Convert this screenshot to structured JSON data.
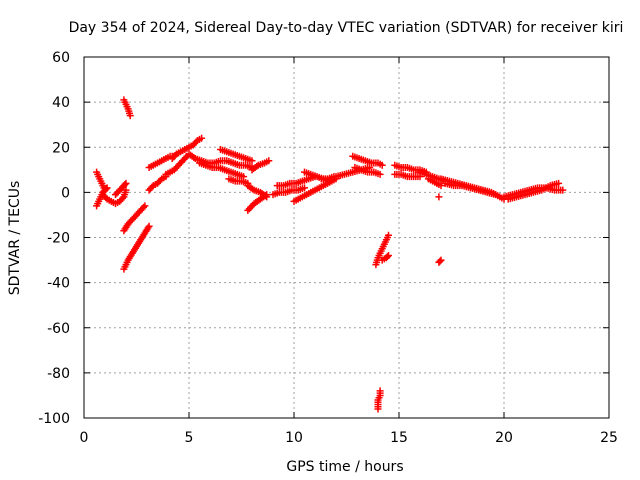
{
  "chart_data": {
    "type": "scatter",
    "title": "Day 354 of 2024, Sidereal Day-to-day VTEC variation (SDTVAR) for receiver kiri",
    "xlabel": "GPS time / hours",
    "ylabel": "SDTVAR / TECUs",
    "xlim": [
      0,
      25
    ],
    "ylim": [
      -100,
      60
    ],
    "xticks": [
      0,
      5,
      10,
      15,
      20,
      25
    ],
    "yticks": [
      -100,
      -80,
      -60,
      -40,
      -20,
      0,
      20,
      40,
      60
    ],
    "grid": true,
    "marker": "plus",
    "color": "#ff0000",
    "series": [
      {
        "name": "SDTVAR",
        "segments": [
          {
            "x": [
              0.6,
              0.7,
              0.8,
              0.9,
              1.0,
              1.1
            ],
            "y": [
              -6,
              -4,
              -2,
              0,
              1,
              2
            ]
          },
          {
            "x": [
              0.6,
              0.7,
              0.8,
              0.9,
              1.0
            ],
            "y": [
              9,
              7,
              5,
              3,
              1
            ]
          },
          {
            "x": [
              0.9,
              1.1,
              1.3,
              1.5,
              1.7,
              1.9,
              2.0
            ],
            "y": [
              -1,
              -3,
              -4,
              -5,
              -4,
              -2,
              1
            ]
          },
          {
            "x": [
              1.5,
              1.7,
              1.9,
              2.0
            ],
            "y": [
              -1,
              1,
              3,
              4
            ]
          },
          {
            "x": [
              1.9,
              2.0,
              2.1,
              2.2
            ],
            "y": [
              41,
              39,
              37,
              34
            ]
          },
          {
            "x": [
              1.9,
              2.1,
              2.3,
              2.5,
              2.7,
              2.9
            ],
            "y": [
              -17,
              -14,
              -12,
              -10,
              -8,
              -6
            ]
          },
          {
            "x": [
              1.9,
              2.1,
              2.3,
              2.5,
              2.7,
              2.9,
              3.1
            ],
            "y": [
              -34,
              -30,
              -27,
              -24,
              -21,
              -18,
              -15
            ]
          },
          {
            "x": [
              3.1,
              3.3,
              3.5,
              3.7,
              3.9
            ],
            "y": [
              1,
              3,
              4,
              6,
              7
            ]
          },
          {
            "x": [
              3.1,
              3.3,
              3.5,
              3.7,
              3.9,
              4.1,
              4.3
            ],
            "y": [
              11,
              12,
              13,
              14,
              15,
              16,
              16
            ]
          },
          {
            "x": [
              3.9,
              4.1,
              4.3,
              4.5,
              4.7,
              4.9
            ],
            "y": [
              8,
              9,
              10,
              12,
              14,
              16
            ]
          },
          {
            "x": [
              4.2,
              4.4,
              4.6,
              4.8,
              5.0,
              5.2,
              5.4,
              5.6
            ],
            "y": [
              15,
              17,
              18,
              19,
              20,
              21,
              23,
              24
            ]
          },
          {
            "x": [
              5.0,
              5.3,
              5.6,
              5.9,
              6.2,
              6.5,
              6.8,
              7.1,
              7.4,
              7.7,
              8.0
            ],
            "y": [
              17,
              15,
              14,
              13,
              13,
              14,
              14,
              13,
              12,
              12,
              11
            ]
          },
          {
            "x": [
              5.5,
              5.8,
              6.1,
              6.4,
              6.7,
              7.0,
              7.3,
              7.6
            ],
            "y": [
              13,
              12,
              11,
              11,
              10,
              9,
              8,
              7
            ]
          },
          {
            "x": [
              6.5,
              6.8,
              7.1,
              7.4,
              7.7,
              8.0
            ],
            "y": [
              19,
              18,
              17,
              16,
              15,
              14
            ]
          },
          {
            "x": [
              6.9,
              7.2,
              7.5,
              7.8
            ],
            "y": [
              6,
              5,
              5,
              4
            ]
          },
          {
            "x": [
              7.8,
              8.1,
              8.4,
              8.7
            ],
            "y": [
              -8,
              -5,
              -3,
              -1
            ]
          },
          {
            "x": [
              7.8,
              8.1,
              8.4,
              8.7
            ],
            "y": [
              3,
              1,
              0,
              -2
            ]
          },
          {
            "x": [
              8.0,
              8.3,
              8.6,
              8.8
            ],
            "y": [
              10,
              12,
              13,
              14
            ]
          },
          {
            "x": [
              9.0,
              9.3,
              9.6,
              9.9,
              10.2,
              10.5
            ],
            "y": [
              -1,
              0,
              0,
              1,
              1,
              2
            ]
          },
          {
            "x": [
              9.2,
              9.5,
              9.8,
              10.1,
              10.4,
              10.7,
              11.0
            ],
            "y": [
              3,
              3,
              4,
              4,
              5,
              6,
              7
            ]
          },
          {
            "x": [
              10.0,
              10.4,
              10.8,
              11.2,
              11.6,
              12.0
            ],
            "y": [
              -4,
              -2,
              0,
              2,
              4,
              6
            ]
          },
          {
            "x": [
              10.5,
              10.8,
              11.1,
              11.4,
              11.7
            ],
            "y": [
              9,
              8,
              7,
              6,
              5
            ]
          },
          {
            "x": [
              11.3,
              11.6,
              11.9
            ],
            "y": [
              6,
              6,
              7
            ]
          },
          {
            "x": [
              12.0,
              12.4,
              12.8,
              13.2,
              13.6
            ],
            "y": [
              7,
              8,
              9,
              10,
              11
            ]
          },
          {
            "x": [
              12.8,
              13.1,
              13.4,
              13.7,
              14.0,
              14.2
            ],
            "y": [
              16,
              15,
              14,
              13,
              13,
              12
            ]
          },
          {
            "x": [
              12.9,
              13.2,
              13.5,
              13.8,
              14.1
            ],
            "y": [
              11,
              10,
              9,
              9,
              8
            ]
          },
          {
            "x": [
              13.9,
              14.0,
              14.1,
              14.2,
              14.3,
              14.4,
              14.5
            ],
            "y": [
              -32,
              -29,
              -27,
              -25,
              -23,
              -21,
              -19
            ]
          },
          {
            "x": [
              14.2,
              14.4,
              14.5
            ],
            "y": [
              -30,
              -29,
              -28
            ]
          },
          {
            "x": [
              14.0,
              14.0,
              14.0,
              14.1,
              14.1
            ],
            "y": [
              -96,
              -94,
              -92,
              -90,
              -88
            ]
          },
          {
            "x": [
              14.8,
              15.1,
              15.4,
              15.7,
              16.0,
              16.3
            ],
            "y": [
              12,
              11,
              11,
              10,
              10,
              9
            ]
          },
          {
            "x": [
              14.8,
              15.1,
              15.4,
              15.7,
              16.0
            ],
            "y": [
              8,
              8,
              7,
              7,
              7
            ]
          },
          {
            "x": [
              16.0,
              16.3,
              16.6,
              16.9,
              17.2
            ],
            "y": [
              9,
              8,
              7,
              6,
              5
            ]
          },
          {
            "x": [
              16.4,
              16.6,
              16.8,
              17.0
            ],
            "y": [
              6,
              5,
              4,
              3
            ]
          },
          {
            "x": [
              16.9
            ],
            "y": [
              -2
            ]
          },
          {
            "x": [
              16.9,
              17.0
            ],
            "y": [
              -31,
              -30
            ]
          },
          {
            "x": [
              17.0,
              17.4,
              17.8,
              18.2,
              18.6,
              19.0,
              19.4,
              19.8,
              20.0
            ],
            "y": [
              6,
              5,
              4,
              3,
              2,
              1,
              0,
              -2,
              -3
            ]
          },
          {
            "x": [
              17.2,
              17.6,
              18.0,
              18.4,
              18.8,
              19.2,
              19.6
            ],
            "y": [
              4,
              3,
              3,
              2,
              1,
              0,
              -1
            ]
          },
          {
            "x": [
              20.0,
              20.4,
              20.8,
              21.2,
              21.6,
              22.0,
              22.4,
              22.8
            ],
            "y": [
              -2,
              -1,
              0,
              1,
              2,
              2,
              1,
              1
            ]
          },
          {
            "x": [
              20.2,
              20.6,
              21.0,
              21.4,
              21.8,
              22.2,
              22.6
            ],
            "y": [
              -3,
              -2,
              -1,
              0,
              1,
              3,
              4
            ]
          }
        ]
      }
    ]
  }
}
